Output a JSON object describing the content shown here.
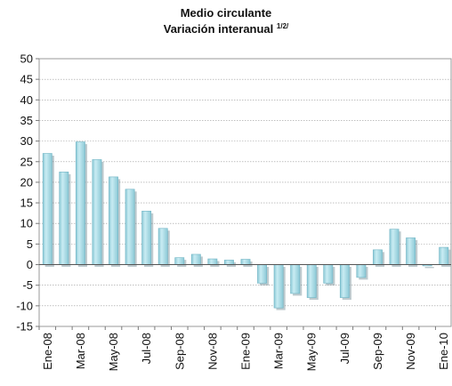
{
  "chart_data": {
    "type": "bar",
    "title": "Medio circulante",
    "subtitle": "Variación interanual",
    "subtitle_superscript": "1/2/",
    "xlabel": "",
    "ylabel": "",
    "ylim": [
      -15,
      50
    ],
    "yticks": [
      -15,
      -10,
      -5,
      0,
      5,
      10,
      15,
      20,
      25,
      30,
      35,
      40,
      45,
      50
    ],
    "grid": true,
    "legend": "none",
    "categories": [
      "Ene-08",
      "Feb-08",
      "Mar-08",
      "Abr-08",
      "May-08",
      "Jun-08",
      "Jul-08",
      "Ago-08",
      "Sep-08",
      "Oct-08",
      "Nov-08",
      "Dic-08",
      "Ene-09",
      "Feb-09",
      "Mar-09",
      "Abr-09",
      "May-09",
      "Jun-09",
      "Jul-09",
      "Ago-09",
      "Sep-09",
      "Oct-09",
      "Nov-09",
      "Dic-09",
      "Ene-10"
    ],
    "category_labels_shown": [
      "Ene-08",
      "",
      "Mar-08",
      "",
      "May-08",
      "",
      "Jul-08",
      "",
      "Sep-08",
      "",
      "Nov-08",
      "",
      "Ene-09",
      "",
      "Mar-09",
      "",
      "May-09",
      "",
      "Jul-09",
      "",
      "Sep-09",
      "",
      "Nov-09",
      "",
      "Ene-10"
    ],
    "values": [
      27,
      22.5,
      29.8,
      25.5,
      21.3,
      18.3,
      13,
      8.8,
      1.7,
      2.5,
      1.4,
      1.1,
      1.3,
      -4.5,
      -10.5,
      -7,
      -8,
      -4.5,
      -8,
      -3.1,
      3.6,
      8.6,
      6.5,
      -0.3,
      4.2
    ],
    "bar_color": "#8cc9d6",
    "bar_highlight_color": "#c9ecf3",
    "bar_shadow_color": "#6f8a92"
  }
}
